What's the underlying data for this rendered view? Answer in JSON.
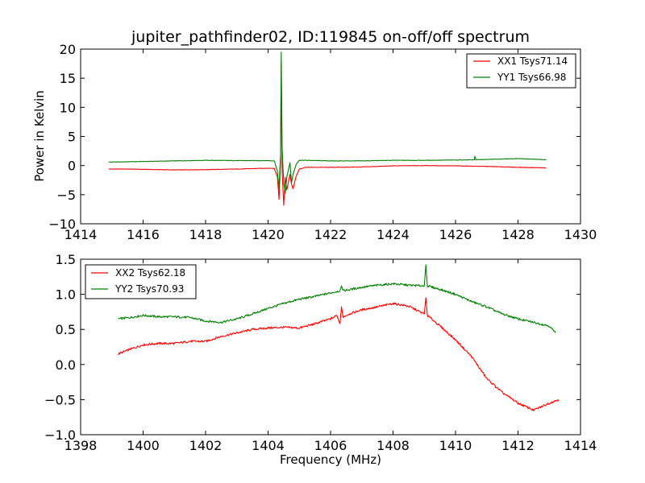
{
  "colors": {
    "red": "#ff0000",
    "green": "#008000"
  },
  "chart_data": [
    {
      "type": "line",
      "title": "jupiter_pathfinder02, ID:119845 on-off/off spectrum",
      "xlabel": "",
      "ylabel": "Power in Kelvin",
      "xlim": [
        1414,
        1430
      ],
      "ylim": [
        -10,
        20
      ],
      "xticks": [
        "1414",
        "1416",
        "1418",
        "1420",
        "1422",
        "1424",
        "1426",
        "1428",
        "1430"
      ],
      "yticks": [
        "20",
        "15",
        "10",
        "5",
        "0",
        "−5",
        "−10"
      ],
      "grid": false,
      "legend_position": "top-right",
      "series": [
        {
          "name": "XX1 Tsys71.14",
          "color": "#ff0000",
          "points": [
            [
              1414.9,
              -0.6
            ],
            [
              1415.5,
              -0.6
            ],
            [
              1416,
              -0.65
            ],
            [
              1417,
              -0.75
            ],
            [
              1418,
              -0.7
            ],
            [
              1419,
              -0.6
            ],
            [
              1420,
              -0.45
            ],
            [
              1420.2,
              -0.5
            ],
            [
              1420.3,
              -2.0
            ],
            [
              1420.35,
              -5.8
            ],
            [
              1420.4,
              0.5
            ],
            [
              1420.42,
              17.5
            ],
            [
              1420.45,
              -1.0
            ],
            [
              1420.5,
              -6.8
            ],
            [
              1420.55,
              -2.0
            ],
            [
              1420.6,
              -4.2
            ],
            [
              1420.7,
              -1.5
            ],
            [
              1420.75,
              -3.2
            ],
            [
              1420.8,
              -4.0
            ],
            [
              1420.9,
              -1.8
            ],
            [
              1421,
              -0.6
            ],
            [
              1421.2,
              -0.3
            ],
            [
              1422,
              -0.3
            ],
            [
              1423,
              -0.25
            ],
            [
              1424,
              -0.05
            ],
            [
              1425,
              0.0
            ],
            [
              1426,
              -0.05
            ],
            [
              1427,
              -0.15
            ],
            [
              1428,
              -0.3
            ],
            [
              1428.9,
              -0.4
            ]
          ]
        },
        {
          "name": "YY1 Tsys66.98",
          "color": "#008000",
          "points": [
            [
              1414.9,
              0.6
            ],
            [
              1415.5,
              0.65
            ],
            [
              1416,
              0.7
            ],
            [
              1417,
              0.8
            ],
            [
              1418,
              0.9
            ],
            [
              1419,
              0.85
            ],
            [
              1420,
              0.85
            ],
            [
              1420.2,
              0.8
            ],
            [
              1420.3,
              -1.0
            ],
            [
              1420.35,
              -4.0
            ],
            [
              1420.4,
              2.0
            ],
            [
              1420.42,
              19.5
            ],
            [
              1420.45,
              3.0
            ],
            [
              1420.5,
              -3.0
            ],
            [
              1420.55,
              -4.8
            ],
            [
              1420.6,
              -2.0
            ],
            [
              1420.7,
              0.5
            ],
            [
              1420.75,
              -3.0
            ],
            [
              1420.8,
              -1.5
            ],
            [
              1420.9,
              0.2
            ],
            [
              1421,
              0.9
            ],
            [
              1421.2,
              0.9
            ],
            [
              1422,
              0.8
            ],
            [
              1423,
              0.8
            ],
            [
              1424,
              0.9
            ],
            [
              1425,
              0.9
            ],
            [
              1426,
              0.95
            ],
            [
              1426.6,
              1.0
            ],
            [
              1426.62,
              1.6
            ],
            [
              1426.65,
              1.0
            ],
            [
              1427,
              1.05
            ],
            [
              1428,
              1.2
            ],
            [
              1428.9,
              1.0
            ]
          ]
        }
      ]
    },
    {
      "type": "line",
      "title": "",
      "xlabel": "Frequency (MHz)",
      "ylabel": "",
      "xlim": [
        1398,
        1414
      ],
      "ylim": [
        -1.0,
        1.5
      ],
      "xticks": [
        "1398",
        "1400",
        "1402",
        "1404",
        "1406",
        "1408",
        "1410",
        "1412",
        "1414"
      ],
      "yticks": [
        "1.5",
        "1.0",
        "0.5",
        "0.0",
        "−0.5",
        "−1.0"
      ],
      "grid": false,
      "legend_position": "top-left",
      "series": [
        {
          "name": "XX2 Tsys62.18",
          "color": "#ff0000",
          "points": [
            [
              1399.2,
              0.15
            ],
            [
              1399.6,
              0.22
            ],
            [
              1400,
              0.28
            ],
            [
              1400.5,
              0.3
            ],
            [
              1401,
              0.3
            ],
            [
              1401.5,
              0.33
            ],
            [
              1402,
              0.33
            ],
            [
              1402.5,
              0.4
            ],
            [
              1403,
              0.45
            ],
            [
              1403.5,
              0.5
            ],
            [
              1404,
              0.52
            ],
            [
              1404.5,
              0.53
            ],
            [
              1405,
              0.52
            ],
            [
              1405.5,
              0.58
            ],
            [
              1406,
              0.65
            ],
            [
              1406.2,
              0.7
            ],
            [
              1406.3,
              0.58
            ],
            [
              1406.35,
              0.82
            ],
            [
              1406.4,
              0.68
            ],
            [
              1406.6,
              0.72
            ],
            [
              1407,
              0.78
            ],
            [
              1407.5,
              0.82
            ],
            [
              1408,
              0.87
            ],
            [
              1408.5,
              0.83
            ],
            [
              1409,
              0.72
            ],
            [
              1409.05,
              0.95
            ],
            [
              1409.1,
              0.7
            ],
            [
              1409.5,
              0.55
            ],
            [
              1410,
              0.35
            ],
            [
              1410.5,
              0.12
            ],
            [
              1411,
              -0.2
            ],
            [
              1411.5,
              -0.4
            ],
            [
              1412,
              -0.55
            ],
            [
              1412.5,
              -0.65
            ],
            [
              1413,
              -0.55
            ],
            [
              1413.3,
              -0.5
            ]
          ]
        },
        {
          "name": "YY2 Tsys70.93",
          "color": "#008000",
          "points": [
            [
              1399.2,
              0.65
            ],
            [
              1399.6,
              0.67
            ],
            [
              1400,
              0.7
            ],
            [
              1400.5,
              0.68
            ],
            [
              1401,
              0.68
            ],
            [
              1401.5,
              0.67
            ],
            [
              1402,
              0.62
            ],
            [
              1402.5,
              0.6
            ],
            [
              1403,
              0.65
            ],
            [
              1403.5,
              0.72
            ],
            [
              1404,
              0.8
            ],
            [
              1404.5,
              0.87
            ],
            [
              1405,
              0.93
            ],
            [
              1405.5,
              0.97
            ],
            [
              1406,
              1.02
            ],
            [
              1406.3,
              1.05
            ],
            [
              1406.35,
              1.12
            ],
            [
              1406.4,
              1.05
            ],
            [
              1407,
              1.1
            ],
            [
              1407.5,
              1.13
            ],
            [
              1408,
              1.15
            ],
            [
              1408.5,
              1.13
            ],
            [
              1409,
              1.12
            ],
            [
              1409.05,
              1.42
            ],
            [
              1409.1,
              1.12
            ],
            [
              1409.5,
              1.07
            ],
            [
              1410,
              1.0
            ],
            [
              1410.5,
              0.9
            ],
            [
              1411,
              0.82
            ],
            [
              1411.5,
              0.72
            ],
            [
              1412,
              0.65
            ],
            [
              1412.5,
              0.6
            ],
            [
              1413,
              0.55
            ],
            [
              1413.2,
              0.45
            ]
          ]
        }
      ]
    }
  ]
}
